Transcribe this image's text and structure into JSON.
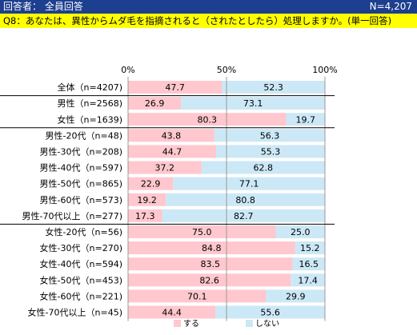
{
  "header": {
    "respondents_label": "回答者： 全員回答",
    "n_total": "N=4,207"
  },
  "question": "Q8：あなたは、異性からムダ毛を指摘されると（されたとしたら）処理しますか。(単一回答)",
  "chart_data": {
    "type": "bar",
    "stacked": "100%",
    "orientation": "horizontal",
    "xlim": [
      0,
      100
    ],
    "x_ticks": [
      "0%",
      "50%",
      "100%"
    ],
    "grid": true,
    "legend_position": "bottom",
    "series": [
      {
        "name": "する",
        "color": "#ffc7ce"
      },
      {
        "name": "しない",
        "color": "#cce8f6"
      }
    ],
    "categories": [
      "全体（n=4207)",
      "男性（n=2568)",
      "女性（n=1639)",
      "男性-20代（n=48)",
      "男性-30代（n=208)",
      "男性-40代（n=597)",
      "男性-50代（n=865)",
      "男性-60代（n=573)",
      "男性-70代以上（n=277)",
      "女性-20代（n=56)",
      "女性-30代（n=270)",
      "女性-40代（n=594)",
      "女性-50代（n=453)",
      "女性-60代（n=221)",
      "女性-70代以上（n=45)"
    ],
    "values": {
      "する": [
        "47.7",
        "26.9",
        "80.3",
        "43.8",
        "44.7",
        "37.2",
        "22.9",
        "19.2",
        "17.3",
        "75.0",
        "84.8",
        "83.5",
        "82.6",
        "70.1",
        "44.4"
      ],
      "しない": [
        "52.3",
        "73.1",
        "19.7",
        "56.3",
        "55.3",
        "62.8",
        "77.1",
        "80.8",
        "82.7",
        "25.0",
        "15.2",
        "16.5",
        "17.4",
        "29.9",
        "55.6"
      ]
    }
  }
}
